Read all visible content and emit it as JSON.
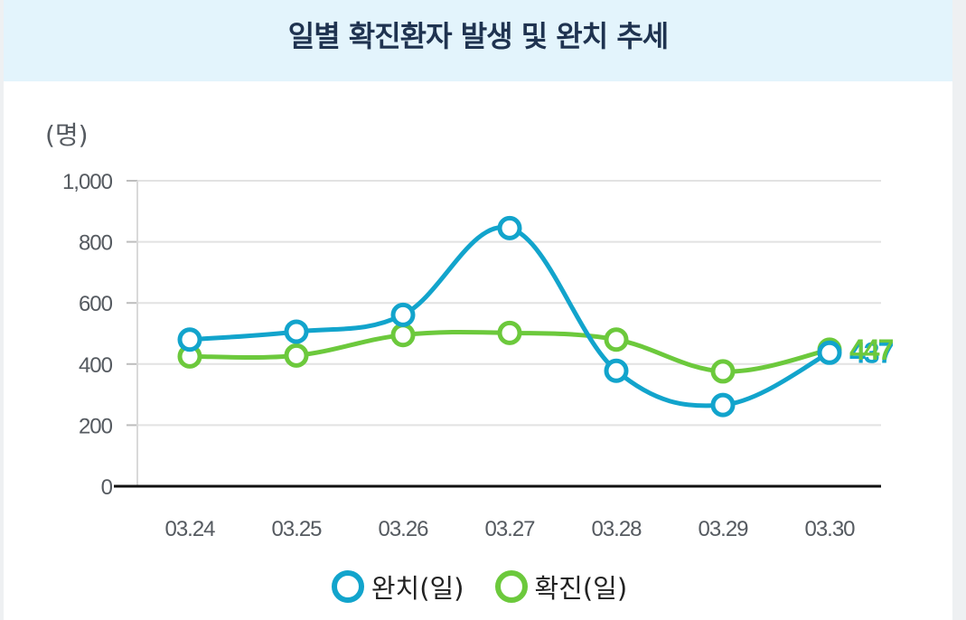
{
  "header": {
    "title": "일별 확진환자 발생 및 완치 추세"
  },
  "chart_data": {
    "type": "line",
    "title": "일별 확진환자 발생 및 완치 추세",
    "ylabel": "(명)",
    "xlabel": "",
    "ylim": [
      0,
      1000
    ],
    "yticks": [
      "0",
      "200",
      "400",
      "600",
      "800",
      "1,000"
    ],
    "categories": [
      "03.24",
      "03.25",
      "03.26",
      "03.27",
      "03.28",
      "03.29",
      "03.30"
    ],
    "series": [
      {
        "name": "완치(일)",
        "color": "#12a4cc",
        "values": [
          480,
          506,
          561,
          845,
          378,
          266,
          437
        ],
        "last_label": "437"
      },
      {
        "name": "확진(일)",
        "color": "#6cc93c",
        "values": [
          425,
          428,
          495,
          502,
          480,
          376,
          447
        ],
        "last_label": "447"
      }
    ],
    "legend_position": "bottom",
    "grid": true
  }
}
